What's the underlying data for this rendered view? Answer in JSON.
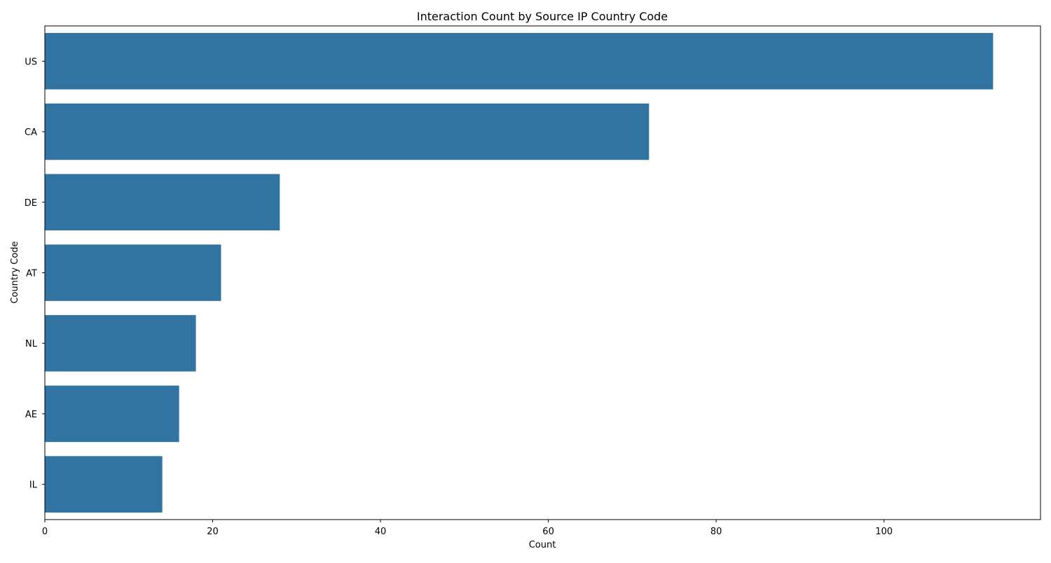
{
  "chart_data": {
    "type": "bar",
    "orientation": "horizontal",
    "title": "Interaction Count by Source IP Country Code",
    "xlabel": "Count",
    "ylabel": "Country Code",
    "categories": [
      "US",
      "CA",
      "DE",
      "AT",
      "NL",
      "AE",
      "IL"
    ],
    "values": [
      113,
      72,
      28,
      21,
      18,
      16,
      14
    ],
    "xlim": [
      0,
      118.65
    ],
    "xticks": [
      0,
      20,
      40,
      60,
      80,
      100
    ],
    "grid": false,
    "bar_color": "#3274a1"
  }
}
